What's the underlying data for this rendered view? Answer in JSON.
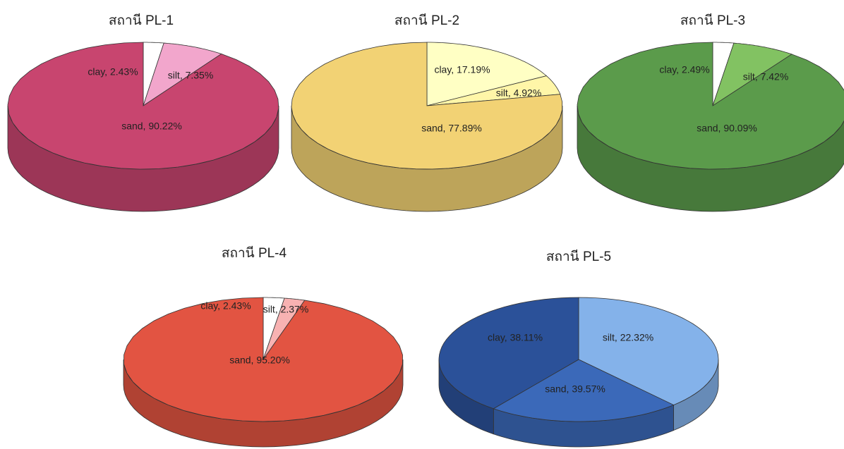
{
  "chart_data": [
    {
      "type": "pie",
      "title": "สถานี PL-1",
      "values": [
        2.43,
        7.35,
        90.22
      ],
      "value_labels": [
        "clay, 2.43%",
        "silt, 7.35%",
        "sand, 90.22%"
      ],
      "colors": [
        "#ffffff",
        "#f2a6cc",
        "#c8456f"
      ]
    },
    {
      "type": "pie",
      "title": "สถานี PL-2",
      "values": [
        17.19,
        4.92,
        77.89
      ],
      "value_labels": [
        "clay, 17.19%",
        "silt, 4.92%",
        "sand, 77.89%"
      ],
      "colors": [
        "#ffffc4",
        "#fff6a8",
        "#f2d274"
      ]
    },
    {
      "type": "pie",
      "title": "สถานี PL-3",
      "values": [
        2.49,
        7.42,
        90.09
      ],
      "value_labels": [
        "clay, 2.49%",
        "silt, 7.42%",
        "sand, 90.09%"
      ],
      "colors": [
        "#ffffff",
        "#82c262",
        "#5b9b4b"
      ]
    },
    {
      "type": "pie",
      "title": "สถานี PL-4",
      "values": [
        2.43,
        2.37,
        95.2
      ],
      "value_labels": [
        "clay, 2.43%",
        "silt, 2.37%",
        "sand, 95.20%"
      ],
      "colors": [
        "#ffffff",
        "#f8b2b2",
        "#e25442"
      ]
    },
    {
      "type": "pie",
      "title": "สถานี PL-5",
      "values": [
        38.11,
        22.32,
        39.57
      ],
      "value_labels": [
        "clay, 38.11%",
        "silt, 22.32%",
        "sand, 39.57%"
      ],
      "colors": [
        "#84b2ea",
        "#3b69b9",
        "#2b5199"
      ]
    }
  ]
}
